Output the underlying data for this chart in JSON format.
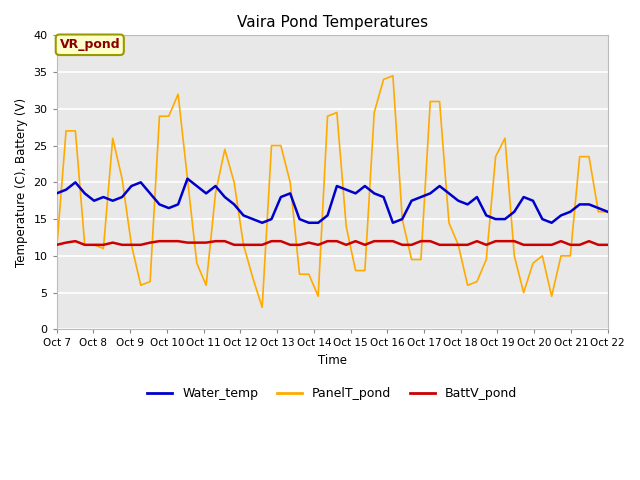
{
  "title": "Vaira Pond Temperatures",
  "ylabel": "Temperature (C), Battery (V)",
  "xlabel": "Time",
  "ylim": [
    0,
    40
  ],
  "annotation_text": "VR_pond",
  "tick_labels": [
    "Oct 7",
    "Oct 8",
    "Oct 9",
    "Oct 10",
    "Oct 11",
    "Oct 12",
    "Oct 13",
    "Oct 14",
    "Oct 15",
    "Oct 16",
    "Oct 17",
    "Oct 18",
    "Oct 19",
    "Oct 20",
    "Oct 21",
    "Oct 22"
  ],
  "yticks": [
    0,
    5,
    10,
    15,
    20,
    25,
    30,
    35,
    40
  ],
  "water_temp_color": "#0000cc",
  "panel_temp_color": "#ffaa00",
  "batt_color": "#cc0000",
  "bg_color": "#e8e8e8",
  "legend_labels": [
    "Water_temp",
    "PanelT_pond",
    "BattV_pond"
  ],
  "water_temp": [
    18.5,
    19.0,
    20.0,
    18.5,
    17.5,
    18.0,
    17.5,
    18.0,
    19.5,
    20.0,
    18.5,
    17.0,
    16.5,
    17.0,
    20.5,
    19.5,
    18.5,
    19.5,
    18.0,
    17.0,
    15.5,
    15.0,
    14.5,
    15.0,
    18.0,
    18.5,
    15.0,
    14.5,
    14.5,
    15.5,
    19.5,
    19.0,
    18.5,
    19.5,
    18.5,
    18.0,
    14.5,
    15.0,
    17.5,
    18.0,
    18.5,
    19.5,
    18.5,
    17.5,
    17.0,
    18.0,
    15.5,
    15.0,
    15.0,
    16.0,
    18.0,
    17.5,
    15.0,
    14.5,
    15.5,
    16.0,
    17.0,
    17.0,
    16.5,
    16.0
  ],
  "panel_temp": [
    11.0,
    27.0,
    27.0,
    11.5,
    11.5,
    11.0,
    26.0,
    20.5,
    11.5,
    6.0,
    6.5,
    29.0,
    29.0,
    32.0,
    20.5,
    9.0,
    6.0,
    18.5,
    24.5,
    20.0,
    11.5,
    7.0,
    3.0,
    25.0,
    25.0,
    20.0,
    7.5,
    7.5,
    4.5,
    29.0,
    29.5,
    14.0,
    8.0,
    8.0,
    29.5,
    34.0,
    34.5,
    15.0,
    9.5,
    9.5,
    31.0,
    31.0,
    14.5,
    11.5,
    6.0,
    6.5,
    9.5,
    23.5,
    26.0,
    10.0,
    5.0,
    9.0,
    10.0,
    4.5,
    10.0,
    10.0,
    23.5,
    23.5,
    16.0,
    16.0
  ],
  "batt_v": [
    11.5,
    11.8,
    12.0,
    11.5,
    11.5,
    11.5,
    11.8,
    11.5,
    11.5,
    11.5,
    11.8,
    12.0,
    12.0,
    12.0,
    11.8,
    11.8,
    11.8,
    12.0,
    12.0,
    11.5,
    11.5,
    11.5,
    11.5,
    12.0,
    12.0,
    11.5,
    11.5,
    11.8,
    11.5,
    12.0,
    12.0,
    11.5,
    12.0,
    11.5,
    12.0,
    12.0,
    12.0,
    11.5,
    11.5,
    12.0,
    12.0,
    11.5,
    11.5,
    11.5,
    11.5,
    12.0,
    11.5,
    12.0,
    12.0,
    12.0,
    11.5,
    11.5,
    11.5,
    11.5,
    12.0,
    11.5,
    11.5,
    12.0,
    11.5,
    11.5
  ]
}
